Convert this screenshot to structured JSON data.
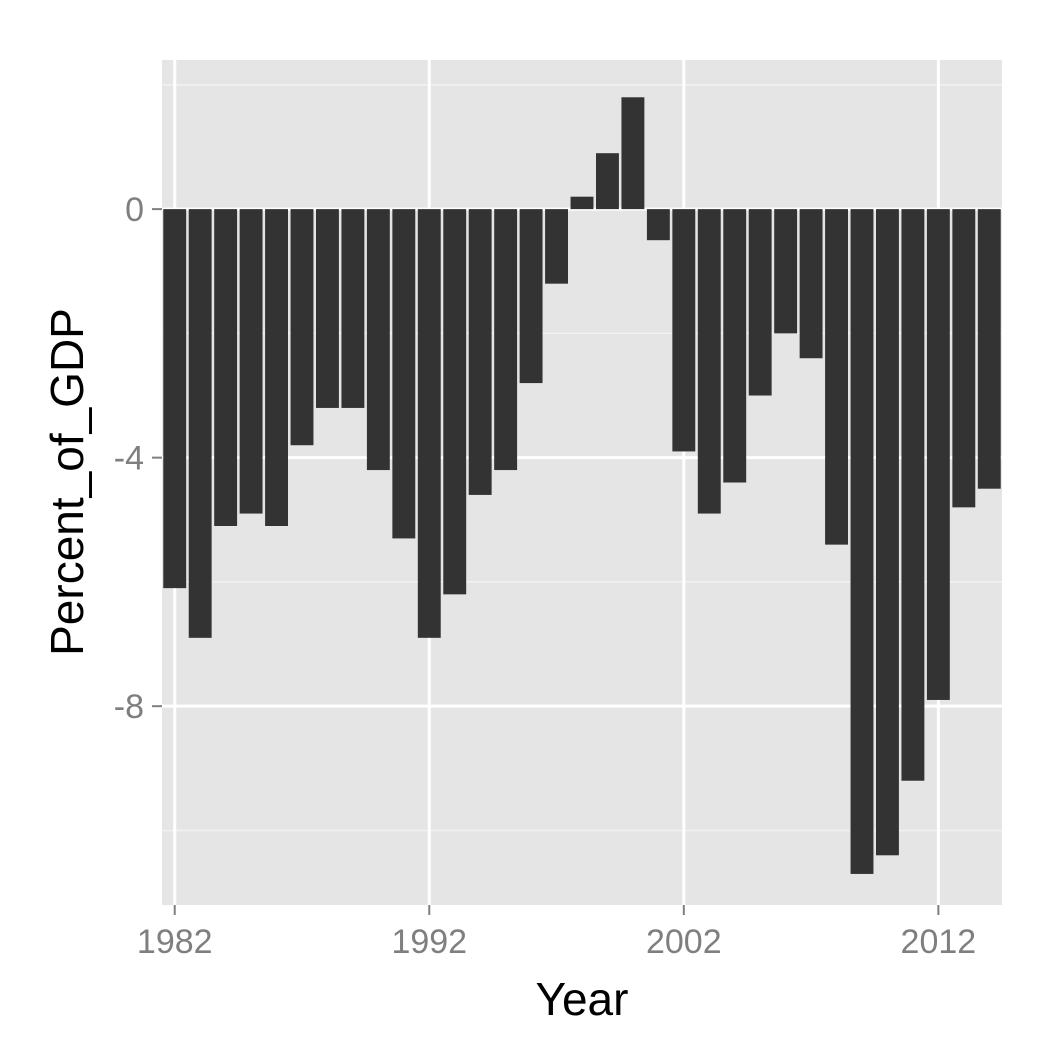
{
  "chart_data": {
    "type": "bar",
    "title": "",
    "xlabel": "Year",
    "ylabel": "Percent_of_GDP",
    "x": [
      1982,
      1983,
      1984,
      1985,
      1986,
      1987,
      1988,
      1989,
      1990,
      1991,
      1992,
      1993,
      1994,
      1995,
      1996,
      1997,
      1998,
      1999,
      2000,
      2001,
      2002,
      2003,
      2004,
      2005,
      2006,
      2007,
      2008,
      2009,
      2010,
      2011,
      2012,
      2013,
      2014
    ],
    "values": [
      -6.1,
      -6.9,
      -5.1,
      -4.9,
      -5.1,
      -3.8,
      -3.2,
      -3.2,
      -4.2,
      -5.3,
      -6.9,
      -6.2,
      -4.6,
      -4.2,
      -2.8,
      -1.2,
      0.2,
      0.9,
      1.8,
      -0.5,
      -3.9,
      -4.9,
      -4.4,
      -3.0,
      -2.0,
      -2.4,
      -5.4,
      -10.7,
      -10.4,
      -9.2,
      -7.9,
      -4.8,
      -4.5
    ],
    "xticks": [
      1982,
      1992,
      2002,
      2012
    ],
    "yticks": [
      0,
      -4,
      -8
    ],
    "xlim": [
      1981.5,
      2014.5
    ],
    "ylim": [
      -11.2,
      2.4
    ],
    "grid": true,
    "legend": "none",
    "colors": {
      "bar": "#333333",
      "panel": "#e5e5e5",
      "grid_major": "#ffffff",
      "grid_minor": "#f2f2f2",
      "tick_label": "#7f7f7f",
      "axis_title": "#000000"
    }
  }
}
